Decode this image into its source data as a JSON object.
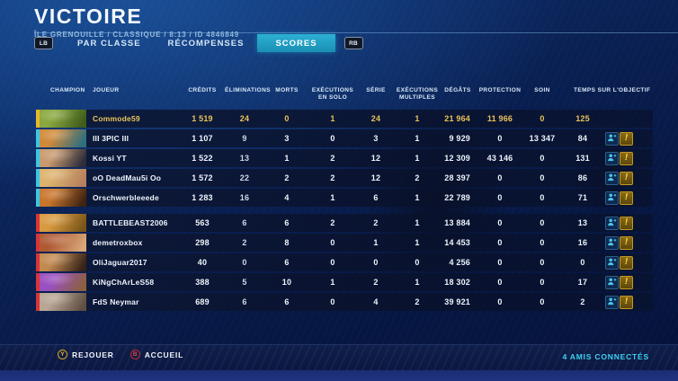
{
  "header": {
    "title": "VICTOIRE",
    "subtitle": "ÎLE GRENOUILLE / CLASSIQUE / 8:13 / ID 4846849"
  },
  "tabs": {
    "left_bumper": "LB",
    "right_bumper": "RB",
    "items": [
      {
        "label": "PAR CLASSE",
        "active": false
      },
      {
        "label": "RÉCOMPENSES",
        "active": false
      },
      {
        "label": "SCORES",
        "active": true
      }
    ]
  },
  "scoreboard": {
    "columns": [
      "CHAMPION",
      "JOUEUR",
      "CRÉDITS",
      "ÉLIMINATIONS",
      "MORTS",
      "EXÉCUTIONS EN SOLO",
      "SÉRIE",
      "EXÉCUTIONS MULTIPLES",
      "DÉGÂTS",
      "PROTECTION",
      "SOIN",
      "TEMPS SUR L'OBJECTIF"
    ],
    "rows": [
      {
        "player": "Commode59",
        "credits": "1 519",
        "eliminations": "24",
        "deaths": "0",
        "solo_kills": "1",
        "streak": "24",
        "multi_kills": "1",
        "damage": "21 964",
        "shielding": "11 966",
        "healing": "0",
        "objective_time": "125",
        "team": 1,
        "local": true,
        "show_icons": false,
        "avatar": [
          "#8aa83e",
          "#3f5c1c"
        ]
      },
      {
        "player": "III 3PIC III",
        "credits": "1 107",
        "eliminations": "9",
        "deaths": "3",
        "solo_kills": "0",
        "streak": "3",
        "multi_kills": "1",
        "damage": "9 929",
        "shielding": "0",
        "healing": "13 347",
        "objective_time": "84",
        "team": 1,
        "local": false,
        "show_icons": true,
        "avatar": [
          "#d28a3a",
          "#2e6f80"
        ]
      },
      {
        "player": "Kossi YT",
        "credits": "1 522",
        "eliminations": "13",
        "deaths": "1",
        "solo_kills": "2",
        "streak": "12",
        "multi_kills": "1",
        "damage": "12 309",
        "shielding": "43 146",
        "healing": "0",
        "objective_time": "131",
        "team": 1,
        "local": false,
        "show_icons": true,
        "avatar": [
          "#c89a6e",
          "#2c2c3a"
        ]
      },
      {
        "player": "oO DeadMau5i Oo",
        "credits": "1 572",
        "eliminations": "22",
        "deaths": "2",
        "solo_kills": "2",
        "streak": "12",
        "multi_kills": "2",
        "damage": "28 397",
        "shielding": "0",
        "healing": "0",
        "objective_time": "86",
        "team": 1,
        "local": false,
        "show_icons": true,
        "avatar": [
          "#dcb26e",
          "#b5805e"
        ]
      },
      {
        "player": "Orschwerbleeede",
        "credits": "1 283",
        "eliminations": "16",
        "deaths": "4",
        "solo_kills": "1",
        "streak": "6",
        "multi_kills": "1",
        "damage": "22 789",
        "shielding": "0",
        "healing": "0",
        "objective_time": "71",
        "team": 1,
        "local": false,
        "show_icons": true,
        "avatar": [
          "#c8762c",
          "#402312"
        ]
      },
      {
        "player": "BATTLEBEAST2006",
        "credits": "563",
        "eliminations": "6",
        "deaths": "6",
        "solo_kills": "2",
        "streak": "2",
        "multi_kills": "1",
        "damage": "13 884",
        "shielding": "0",
        "healing": "0",
        "objective_time": "13",
        "team": 2,
        "local": false,
        "show_icons": true,
        "avatar": [
          "#d89a40",
          "#7a5518"
        ]
      },
      {
        "player": "demetroxbox",
        "credits": "298",
        "eliminations": "2",
        "deaths": "8",
        "solo_kills": "0",
        "streak": "1",
        "multi_kills": "1",
        "damage": "14 453",
        "shielding": "0",
        "healing": "0",
        "objective_time": "16",
        "team": 2,
        "local": false,
        "show_icons": true,
        "avatar": [
          "#b05a34",
          "#d8a878"
        ]
      },
      {
        "player": "OliJaguar2017",
        "credits": "40",
        "eliminations": "0",
        "deaths": "6",
        "solo_kills": "0",
        "streak": "0",
        "multi_kills": "0",
        "damage": "4 256",
        "shielding": "0",
        "healing": "0",
        "objective_time": "0",
        "team": 2,
        "local": false,
        "show_icons": true,
        "avatar": [
          "#c28a50",
          "#352218"
        ]
      },
      {
        "player": "KiNgChArLeS58",
        "credits": "388",
        "eliminations": "5",
        "deaths": "10",
        "solo_kills": "1",
        "streak": "2",
        "multi_kills": "1",
        "damage": "18 302",
        "shielding": "0",
        "healing": "0",
        "objective_time": "17",
        "team": 2,
        "local": false,
        "show_icons": true,
        "avatar": [
          "#9a50c0",
          "#8a6040"
        ]
      },
      {
        "player": "FdS Neymar",
        "credits": "689",
        "eliminations": "6",
        "deaths": "6",
        "solo_kills": "0",
        "streak": "4",
        "multi_kills": "2",
        "damage": "39 921",
        "shielding": "0",
        "healing": "0",
        "objective_time": "2",
        "team": 2,
        "local": false,
        "show_icons": true,
        "avatar": [
          "#b8a694",
          "#5f4f42"
        ]
      }
    ]
  },
  "footer": {
    "buttons": [
      {
        "key": "Y",
        "label": "REJOUER"
      },
      {
        "key": "B",
        "label": "ACCUEIL"
      }
    ],
    "friends_status": "4 AMIS CONNECTÉS"
  },
  "colors": {
    "accent": "#25a6c8",
    "team1": "#35c8e8",
    "team2": "#d93438",
    "local_player": "#e9c358"
  }
}
